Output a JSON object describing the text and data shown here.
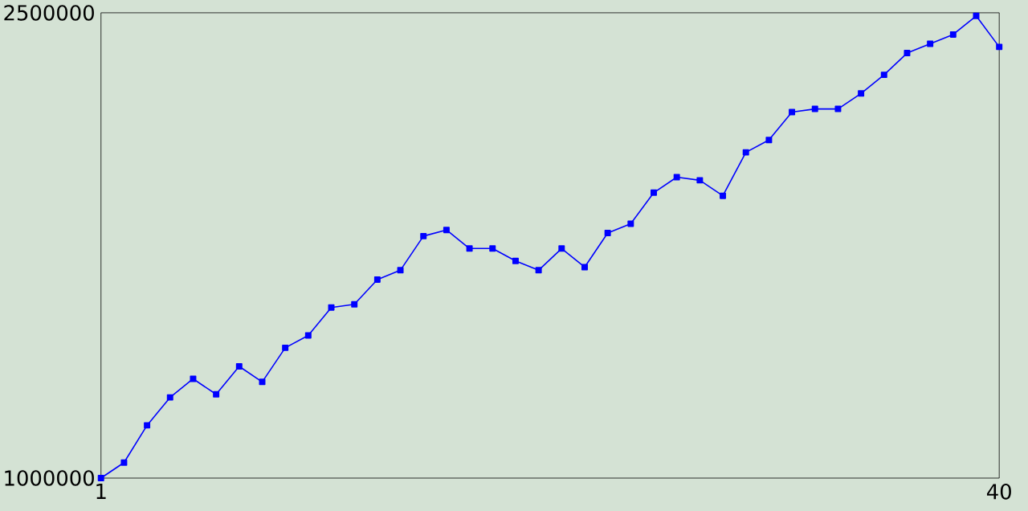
{
  "chart_data": {
    "type": "line",
    "x": [
      1,
      2,
      3,
      4,
      5,
      6,
      7,
      8,
      9,
      10,
      11,
      12,
      13,
      14,
      15,
      16,
      17,
      18,
      19,
      20,
      21,
      22,
      23,
      24,
      25,
      26,
      27,
      28,
      29,
      30,
      31,
      32,
      33,
      34,
      35,
      36,
      37,
      38,
      39,
      40
    ],
    "series": [
      {
        "color": "#0000ff",
        "values": [
          1000000,
          1050000,
          1170000,
          1260000,
          1320000,
          1270000,
          1360000,
          1310000,
          1420000,
          1460000,
          1550000,
          1560000,
          1640000,
          1670000,
          1780000,
          1800000,
          1740000,
          1740000,
          1700000,
          1670000,
          1740000,
          1680000,
          1790000,
          1820000,
          1920000,
          1970000,
          1960000,
          1910000,
          2050000,
          2090000,
          2180000,
          2190000,
          2190000,
          2240000,
          2300000,
          2370000,
          2400000,
          2430000,
          2490000,
          2390000
        ]
      }
    ],
    "xlim": [
      1,
      40
    ],
    "xticks": [
      1,
      40
    ],
    "ylim": [
      1000000,
      2500000
    ],
    "yticks": [
      1000000,
      2500000
    ],
    "grid": false,
    "marker": "square",
    "line_style": "solid"
  }
}
